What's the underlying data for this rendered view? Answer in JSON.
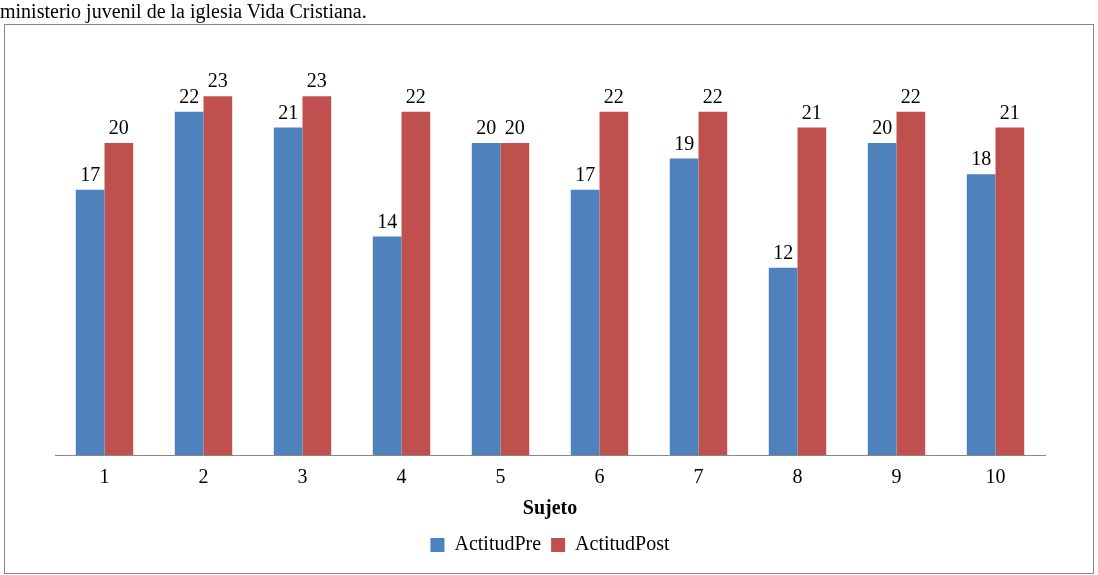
{
  "chart_data": {
    "type": "bar",
    "title": "ministerio juvenil de la iglesia Vida Cristiana.",
    "xlabel": "Sujeto",
    "categories": [
      "1",
      "2",
      "3",
      "4",
      "5",
      "6",
      "7",
      "8",
      "9",
      "10"
    ],
    "series": [
      {
        "name": "ActitudPre",
        "color": "#4f81bd",
        "values": [
          17,
          22,
          21,
          14,
          20,
          17,
          19,
          12,
          20,
          18
        ]
      },
      {
        "name": "ActitudPost",
        "color": "#c0504d",
        "values": [
          20,
          23,
          23,
          22,
          20,
          22,
          22,
          21,
          22,
          21
        ]
      }
    ],
    "data_labels": true,
    "legend": "bottom",
    "grid": false
  }
}
